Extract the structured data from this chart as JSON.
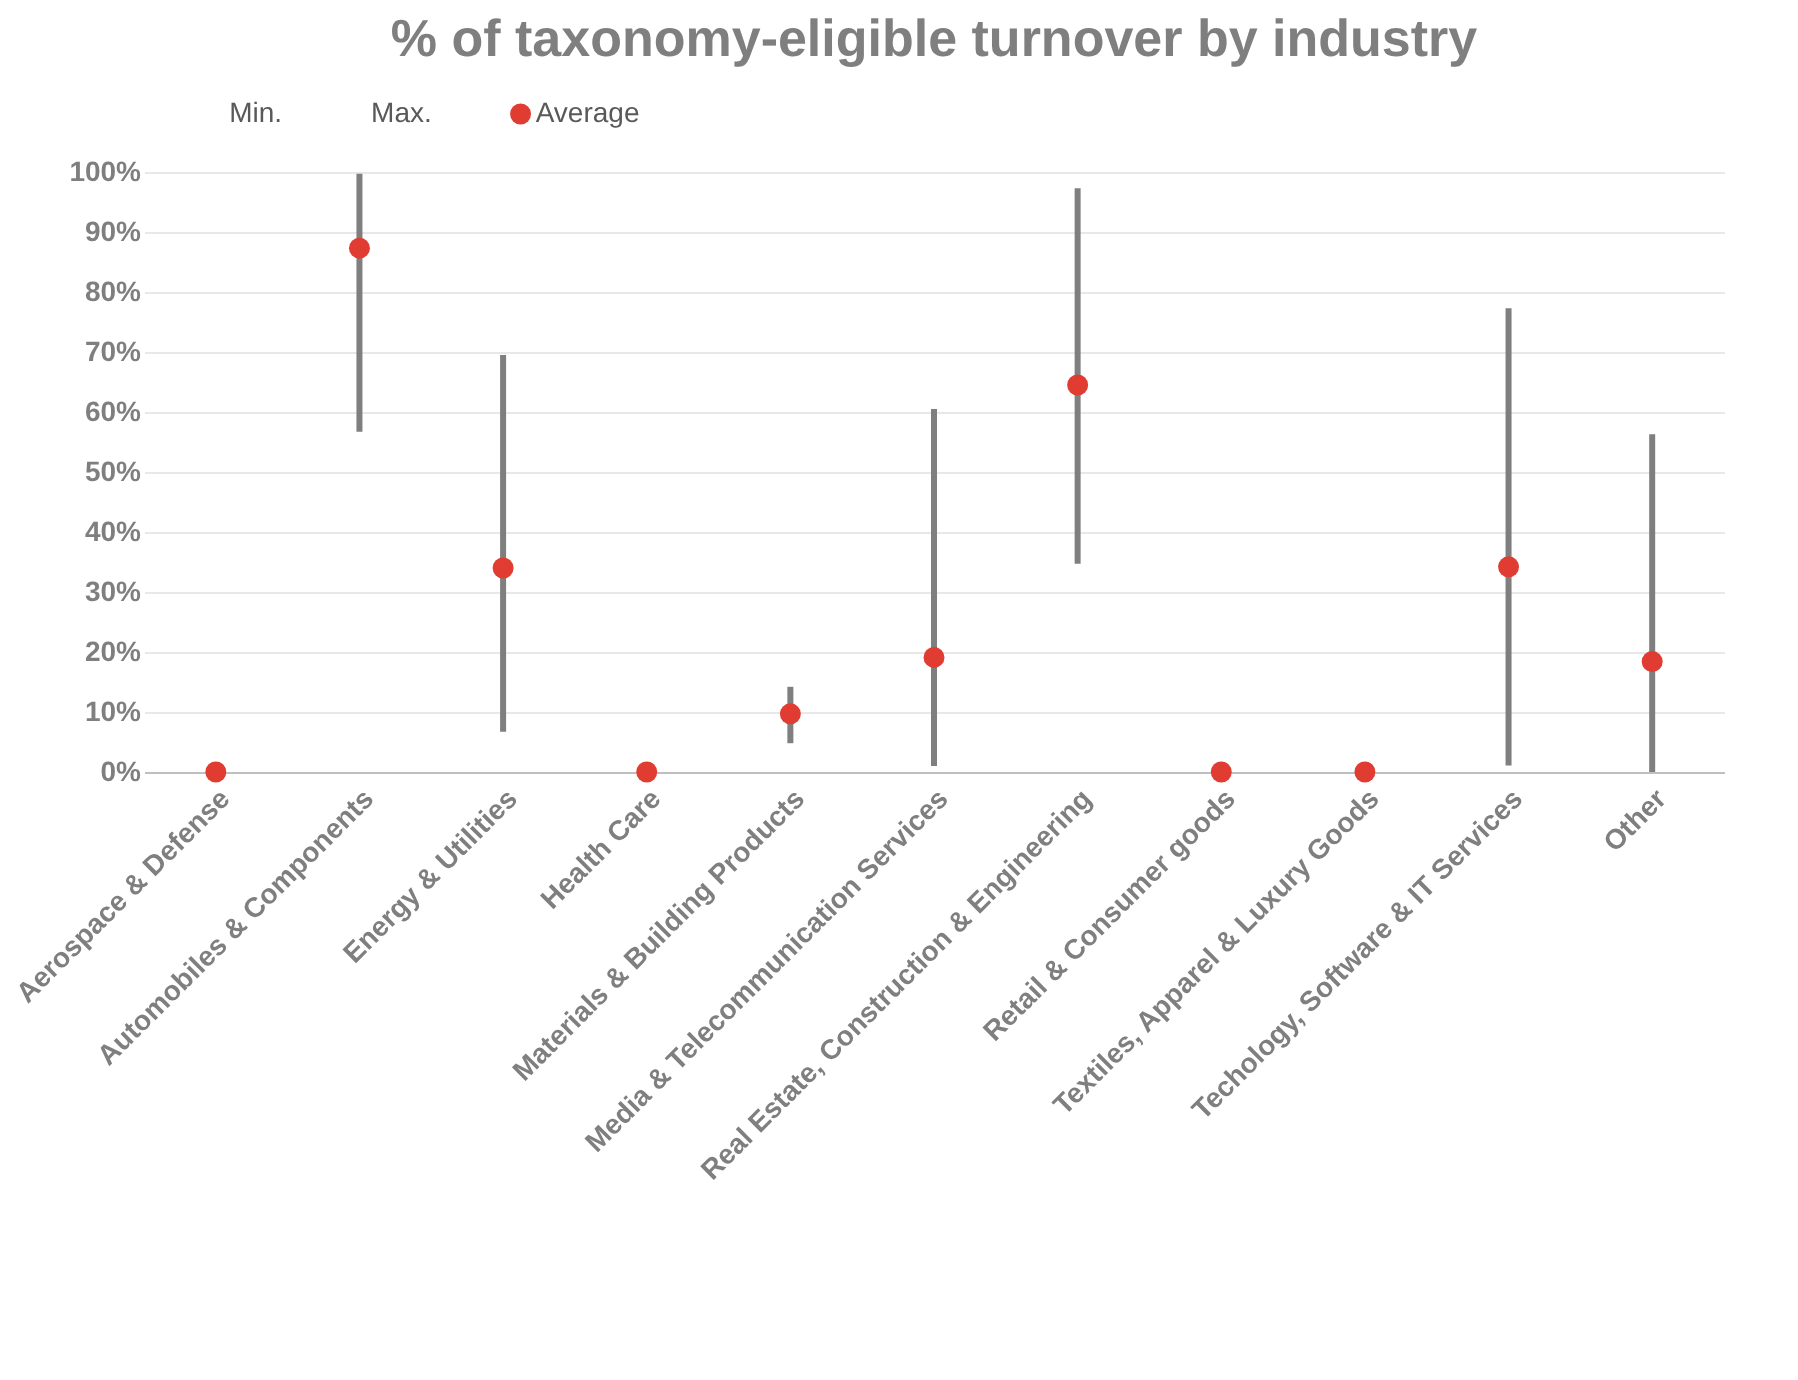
{
  "chart_data": {
    "type": "scatter",
    "title": "% of taxonomy-eligible turnover by industry",
    "categories": [
      "Aerospace & Defense",
      "Automobiles & Components",
      "Energy & Utilities",
      "Health Care",
      "Materials & Building Products",
      "Media & Telecommunication  Services",
      "Real Estate, Construction & Engineering",
      "Retail & Consumer goods",
      "Textiles, Apparel  & Luxury Goods",
      "Techology, Software & IT Services",
      "Other"
    ],
    "series": [
      {
        "name": "Average",
        "color": "#e03c31",
        "values": [
          0,
          87.3,
          34.0,
          0,
          9.7,
          19.1,
          64.5,
          0,
          0,
          34.2,
          18.4
        ],
        "errors": [
          null,
          [
            56.7,
            99.7
          ],
          [
            6.7,
            69.5
          ],
          null,
          [
            4.8,
            14.2
          ],
          [
            1.0,
            60.5
          ],
          [
            34.7,
            97.3
          ],
          null,
          null,
          [
            1.1,
            77.3
          ],
          [
            0,
            56.3
          ]
        ]
      }
    ],
    "annotations": [
      "Min.",
      "Max."
    ],
    "marker": "circle",
    "ylim": [
      0,
      100
    ],
    "yticks": [
      {
        "value": 0,
        "label": "0%"
      },
      {
        "value": 10,
        "label": "10%"
      },
      {
        "value": 20,
        "label": "20%"
      },
      {
        "value": 30,
        "label": "30%"
      },
      {
        "value": 40,
        "label": "40%"
      },
      {
        "value": 50,
        "label": "50%"
      },
      {
        "value": 60,
        "label": "60%"
      },
      {
        "value": 70,
        "label": "70%"
      },
      {
        "value": 80,
        "label": "80%"
      },
      {
        "value": 90,
        "label": "90%"
      },
      {
        "value": 100,
        "label": "100%"
      }
    ],
    "grid": "y",
    "legend": "top left"
  }
}
